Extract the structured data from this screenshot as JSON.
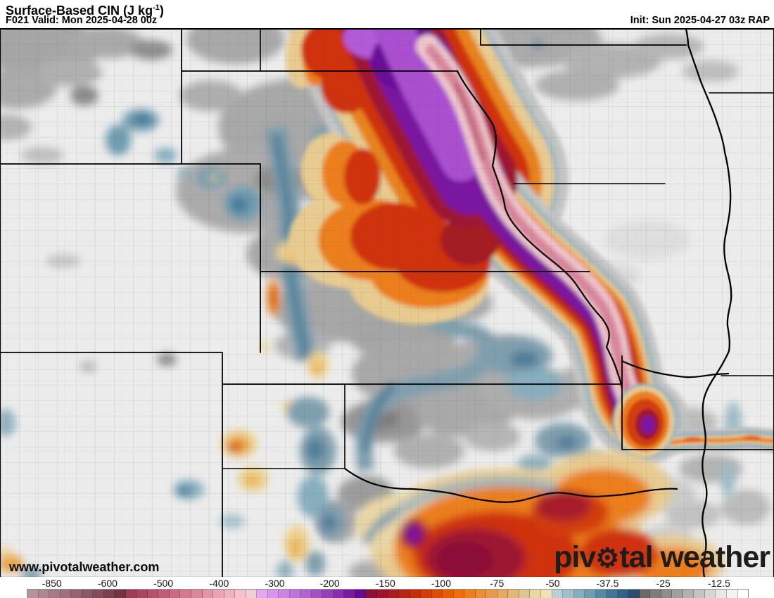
{
  "header": {
    "title_main": "Surface-Based CIN (J kg",
    "title_sup": "-1",
    "title_close": ")",
    "subtitle": "F021 Valid: Mon 2025-04-28 00z",
    "init": "Init: Sun 2025-04-27 03z RAP"
  },
  "map": {
    "watermark": "www.pivotalweather.com",
    "logo_prefix": "piv",
    "logo_suffix": "tal weather",
    "gear_glyph": "⚙",
    "field": "Surface-Based CIN",
    "units": "J kg-1",
    "model": "RAP",
    "forecast_hour": "F021"
  },
  "colorbar": {
    "labels": [
      {
        "text": "-850",
        "pct": 6.7
      },
      {
        "text": "-600",
        "pct": 13.9
      },
      {
        "text": "-500",
        "pct": 21.1
      },
      {
        "text": "-400",
        "pct": 28.3
      },
      {
        "text": "-300",
        "pct": 35.5
      },
      {
        "text": "-200",
        "pct": 42.6
      },
      {
        "text": "-150",
        "pct": 49.8
      },
      {
        "text": "-100",
        "pct": 57.0
      },
      {
        "text": "-75",
        "pct": 64.2
      },
      {
        "text": "-50",
        "pct": 71.4
      },
      {
        "text": "-37.5",
        "pct": 78.5
      },
      {
        "text": "-25",
        "pct": 85.7
      },
      {
        "text": "-12.5",
        "pct": 92.9
      }
    ],
    "colors": [
      "#b6939c",
      "#ae8791",
      "#a67b86",
      "#9e707b",
      "#956470",
      "#8c5865",
      "#834c5a",
      "#79404e",
      "#703443",
      "#9f3b52",
      "#ab465e",
      "#b6526a",
      "#c05e75",
      "#ca6b81",
      "#d3798d",
      "#dc8799",
      "#e495a5",
      "#eba4b1",
      "#f2b3bd",
      "#f6c3ca",
      "#f0d0d4",
      "#e3a6f2",
      "#d795ec",
      "#ca84e3",
      "#bd73d9",
      "#b062cf",
      "#a251c4",
      "#9440b8",
      "#862eac",
      "#771c9f",
      "#670a92",
      "#8c1038",
      "#9b162b",
      "#a91d1f",
      "#b72513",
      "#c52e0b",
      "#d23d07",
      "#de4d04",
      "#e75e02",
      "#ed7004",
      "#ec7f1b",
      "#ea8e33",
      "#e79c4b",
      "#e4aa62",
      "#e1b87a",
      "#ddc591",
      "#ead7a4",
      "#eee3b8",
      "#b9d0d6",
      "#9fc0ca",
      "#86aebd",
      "#6f9cb0",
      "#5889a2",
      "#437694",
      "#2f6285",
      "#2a4e6e",
      "#696969",
      "#7b7b7b",
      "#8d8d8d",
      "#9f9f9f",
      "#b1b1b1",
      "#c3c3c3",
      "#d5d5d5",
      "#e7e7e7",
      "#f3f3f3",
      "#ffffff"
    ]
  }
}
